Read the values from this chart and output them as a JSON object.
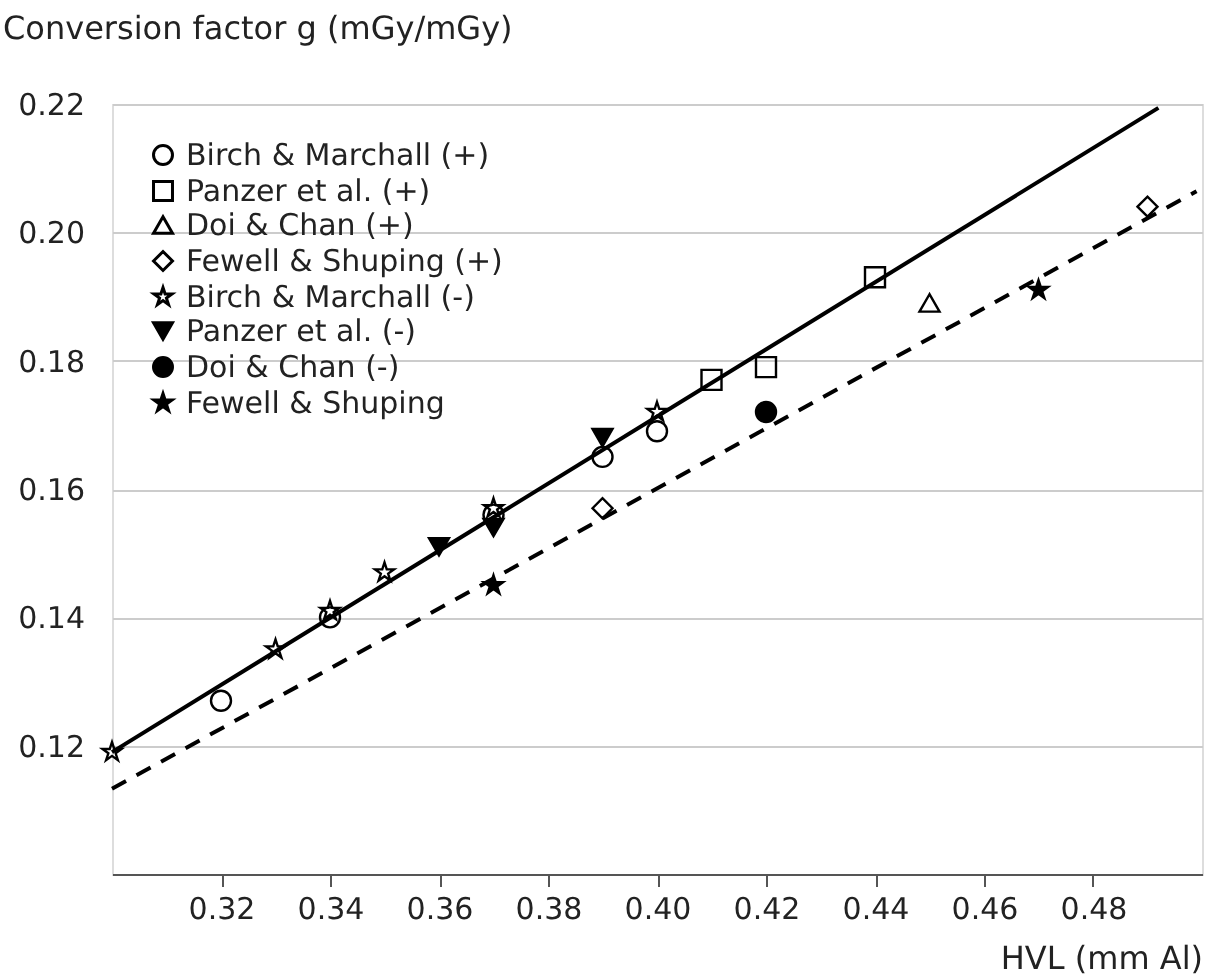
{
  "chart_data": {
    "type": "scatter",
    "xlabel": "HVL (mm Al)",
    "ylabel": "Conversion factor g (mGy/mGy)",
    "xlim": [
      0.3,
      0.5
    ],
    "xticks": [
      0.32,
      0.34,
      0.36,
      0.38,
      {
        "value": 0.4,
        "label": "0.40"
      },
      0.42,
      0.44,
      0.46,
      0.48
    ],
    "ylim": [
      0.1,
      0.22
    ],
    "yticks": [
      0.12,
      0.14,
      0.16,
      0.18,
      {
        "value": 0.2,
        "label": "0.20"
      },
      0.22
    ],
    "grid": "y",
    "legend": "top left",
    "series": [
      {
        "name": "Birch & Marchall (+)",
        "marker": "circle-open",
        "color": "#000000",
        "x": [
          0.32,
          0.34,
          0.37,
          0.39,
          0.4
        ],
        "values": [
          0.127,
          0.14,
          0.156,
          0.165,
          0.169
        ]
      },
      {
        "name": "Panzer et al. (+)",
        "marker": "square-open",
        "color": "#000000",
        "x": [
          0.41,
          0.42,
          0.44
        ],
        "values": [
          0.177,
          0.179,
          0.193
        ]
      },
      {
        "name": "Doi & Chan (+)",
        "marker": "triangle-open",
        "color": "#000000",
        "x": [
          0.45
        ],
        "values": [
          0.189
        ]
      },
      {
        "name": "Fewell & Shuping (+)",
        "marker": "diamond-open",
        "color": "#000000",
        "x": [
          0.39,
          0.49
        ],
        "values": [
          0.157,
          0.204
        ]
      },
      {
        "name": "Birch & Marchall (-)",
        "marker": "star-open",
        "color": "#000000",
        "x": [
          0.3,
          0.33,
          0.34,
          0.35,
          0.37,
          0.4
        ],
        "values": [
          0.119,
          0.135,
          0.141,
          0.147,
          0.157,
          0.172
        ]
      },
      {
        "name": "Panzer et al. (-)",
        "marker": "triangle-down",
        "color": "#000000",
        "x": [
          0.36,
          0.37,
          0.39
        ],
        "values": [
          0.151,
          0.154,
          0.168
        ]
      },
      {
        "name": "Doi & Chan (-)",
        "marker": "circle",
        "color": "#000000",
        "x": [
          0.42
        ],
        "values": [
          0.172
        ]
      },
      {
        "name": "Fewell & Shuping",
        "marker": "star",
        "color": "#000000",
        "x": [
          0.37,
          0.47
        ],
        "values": [
          0.145,
          0.191
        ]
      },
      {
        "type": "line",
        "line_style": "solid",
        "color": "#000000",
        "x": [
          0.3,
          0.492
        ],
        "values": [
          0.119,
          0.2194
        ]
      },
      {
        "type": "line",
        "line_style": "dashed",
        "color": "#000000",
        "x": [
          0.3,
          0.499
        ],
        "values": [
          0.1133,
          0.2064
        ]
      }
    ]
  }
}
